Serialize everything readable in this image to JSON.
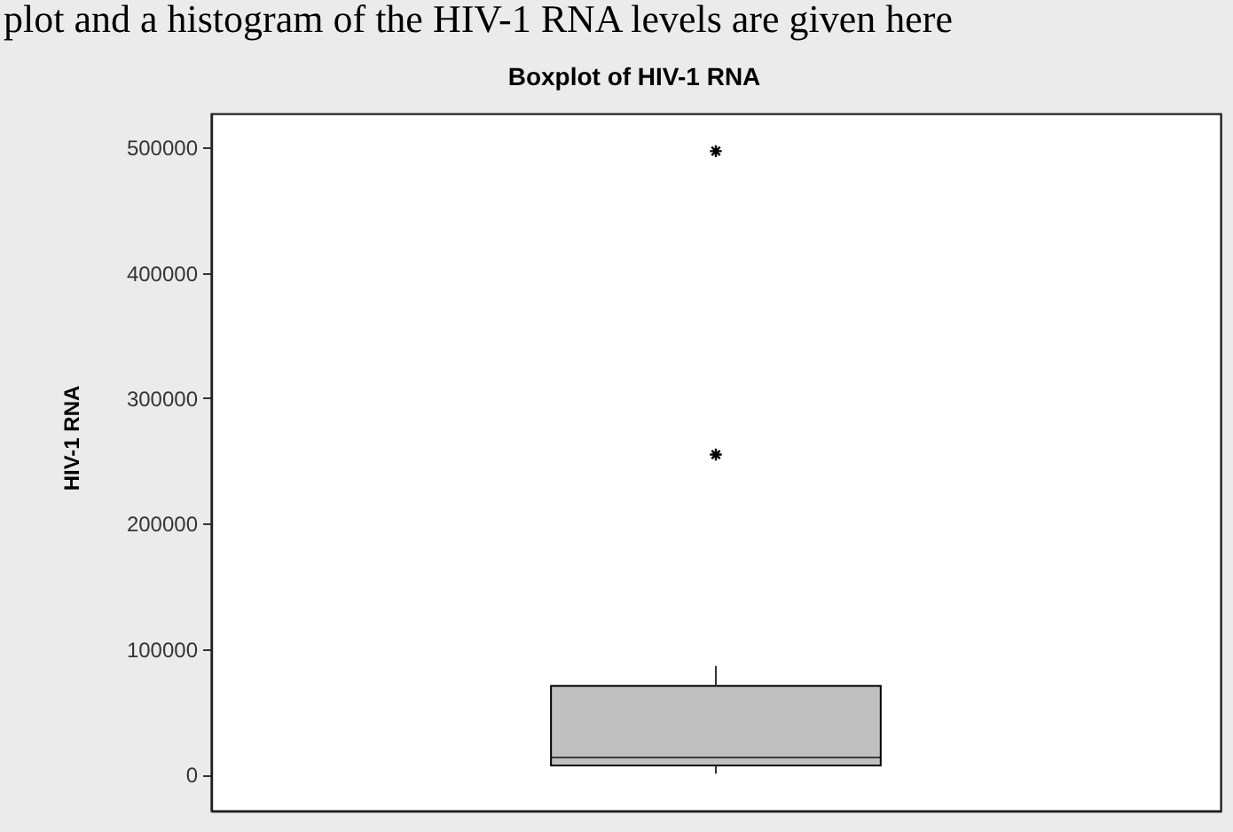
{
  "chart_data": {
    "type": "box",
    "title": "Boxplot of HIV-1 RNA",
    "ylabel": "HIV-1 RNA",
    "annotations": [
      "plot and a histogram of the HIV-1 RNA levels are given here"
    ],
    "categories": [
      null
    ],
    "series": [
      {
        "color": "#c0c0c0",
        "boxes": [
          {
            "low": 500,
            "q1": 7000,
            "median": 13500,
            "q3": 70500,
            "high": 86500,
            "outliers": [
              255000,
              497000
            ]
          }
        ]
      }
    ],
    "ylim": [
      -29000,
      527000
    ],
    "yticks": [
      0,
      100000,
      200000,
      300000,
      400000,
      500000
    ],
    "marker": "star",
    "grid": false
  }
}
